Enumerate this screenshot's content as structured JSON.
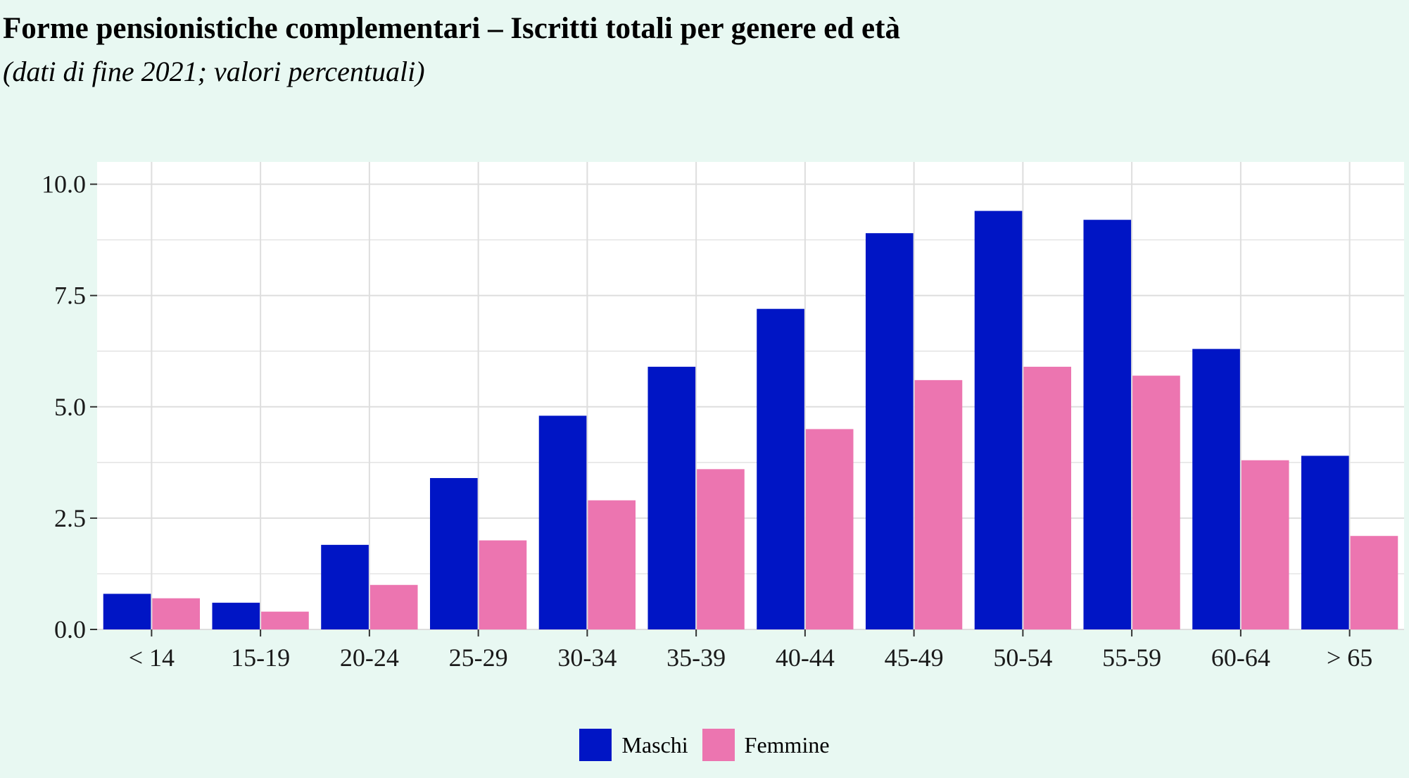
{
  "colors": {
    "background": "#e8f8f2",
    "panel": "#ffffff",
    "grid": "#dedede"
  },
  "chart_data": {
    "type": "bar",
    "title": "Forme pensionistiche complementari – Iscritti totali per genere ed età",
    "subtitle": "(dati di fine 2021; valori percentuali)",
    "xlabel": "",
    "ylabel": "",
    "categories": [
      "< 14",
      "15-19",
      "20-24",
      "25-29",
      "30-34",
      "35-39",
      "40-44",
      "45-49",
      "50-54",
      "55-59",
      "60-64",
      "> 65"
    ],
    "series": [
      {
        "name": "Maschi",
        "color": "#0015c5",
        "values": [
          0.8,
          0.6,
          1.9,
          3.4,
          4.8,
          5.9,
          7.2,
          8.9,
          9.4,
          9.2,
          6.3,
          3.9
        ]
      },
      {
        "name": "Femmine",
        "color": "#ec75b0",
        "values": [
          0.7,
          0.4,
          1.0,
          2.0,
          2.9,
          3.6,
          4.5,
          5.6,
          5.9,
          5.7,
          3.8,
          2.1
        ]
      }
    ],
    "ylim": [
      0,
      10.5
    ],
    "yticks": [
      "0.0",
      "2.5",
      "5.0",
      "7.5",
      "10.0"
    ],
    "grid": true,
    "legend_position": "bottom"
  }
}
